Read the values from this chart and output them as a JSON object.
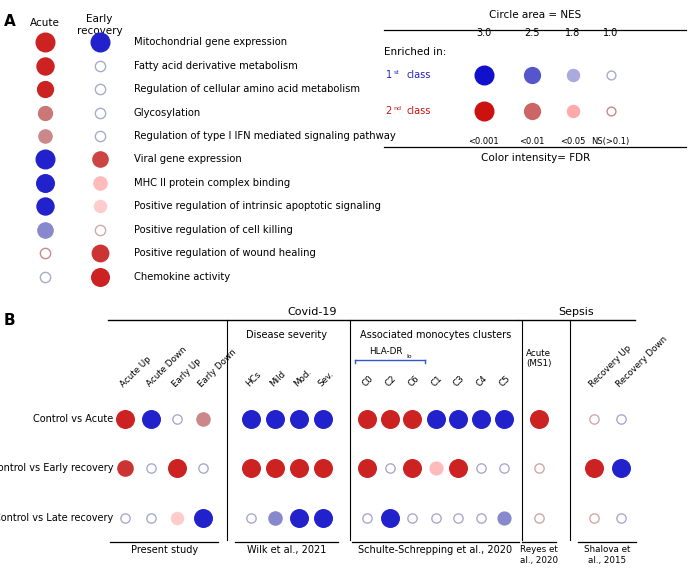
{
  "panel_A_rows": [
    {
      "label": "Mitochondrial gene expression",
      "acute_color": "#CC2222",
      "acute_size": 180,
      "early_color": "#2222CC",
      "early_size": 180
    },
    {
      "label": "Fatty acid derivative metabolism",
      "acute_color": "#CC2222",
      "acute_size": 150,
      "early_color": "#FFFFFF",
      "early_size": 55,
      "early_edge": "#AAAACC"
    },
    {
      "label": "Regulation of cellular amino acid metabolism",
      "acute_color": "#CC2222",
      "acute_size": 130,
      "early_color": "#FFFFFF",
      "early_size": 55,
      "early_edge": "#AAAACC"
    },
    {
      "label": "Glycosylation",
      "acute_color": "#CC7777",
      "acute_size": 100,
      "early_color": "#FFFFFF",
      "early_size": 55,
      "early_edge": "#AAAACC"
    },
    {
      "label": "Regulation of type I IFN mediated signaling pathway",
      "acute_color": "#CC8888",
      "acute_size": 90,
      "early_color": "#FFFFFF",
      "early_size": 55,
      "early_edge": "#AAAACC"
    },
    {
      "label": "Viral gene expression",
      "acute_color": "#2222CC",
      "acute_size": 180,
      "early_color": "#CC4444",
      "early_size": 120
    },
    {
      "label": "MHC II protein complex binding",
      "acute_color": "#2222CC",
      "acute_size": 160,
      "early_color": "#FFBBBB",
      "early_size": 90
    },
    {
      "label": "Positive regulation of intrinsic apoptotic signaling",
      "acute_color": "#2222CC",
      "acute_size": 150,
      "early_color": "#FFCCCC",
      "early_size": 75
    },
    {
      "label": "Positive regulation of cell killing",
      "acute_color": "#8888CC",
      "acute_size": 120,
      "early_color": "#FFFFFF",
      "early_size": 55,
      "early_edge": "#CCAAAA"
    },
    {
      "label": "Positive regulation of wound healing",
      "acute_color": "#FFFFFF",
      "acute_size": 55,
      "acute_edge": "#CC8888",
      "early_color": "#CC3333",
      "early_size": 140
    },
    {
      "label": "Chemokine activity",
      "acute_color": "#FFFFFF",
      "acute_size": 55,
      "acute_edge": "#AAAACC",
      "early_color": "#CC2222",
      "early_size": 160
    }
  ],
  "legend_nes_vals": [
    "3.0",
    "2.5",
    "1.8",
    "1.0"
  ],
  "legend_nes_sizes": [
    180,
    130,
    75,
    40
  ],
  "legend_fdr_labels": [
    "<0.001",
    "<0.01",
    "<0.05",
    "NS(>0.1)"
  ],
  "legend_blue_colors": [
    "#1111CC",
    "#5555CC",
    "#AAAADD",
    "#FFFFFF"
  ],
  "legend_blue_edges": [
    "#1111CC",
    "#5555CC",
    "#AAAADD",
    "#AAAACC"
  ],
  "legend_red_colors": [
    "#CC1111",
    "#CC6666",
    "#FFAAAA",
    "#FFFFFF"
  ],
  "legend_red_edges": [
    "#CC1111",
    "#CC6666",
    "#FFAAAA",
    "#CC8888"
  ],
  "panel_B_rows": [
    "Control vs Acute",
    "Control vs Early recovery",
    "Control vs Late recovery"
  ],
  "panel_B_cols_present": [
    "Acute Up",
    "Acute Down",
    "Early Up",
    "Early Down"
  ],
  "panel_B_cols_wilk": [
    "HCs",
    "Mild",
    "Mod.",
    "Sev."
  ],
  "panel_B_cols_schulte_hladr": [
    "C0",
    "C2",
    "C6"
  ],
  "panel_B_cols_schulte_rest": [
    "C1",
    "C3",
    "C4",
    "C5"
  ],
  "panel_B_cols_shalova": [
    "Recovery Up",
    "Recovery Down"
  ],
  "B_present_data": [
    [
      [
        "#CC2222",
        160
      ],
      [
        "#2222CC",
        160
      ],
      [
        "#FFFFFF",
        45
      ],
      [
        "#CC8888",
        90
      ]
    ],
    [
      [
        "#CC3333",
        120
      ],
      [
        "#FFFFFF",
        45
      ],
      [
        "#CC2222",
        160
      ],
      [
        "#FFFFFF",
        45
      ]
    ],
    [
      [
        "#FFFFFF",
        45
      ],
      [
        "#FFFFFF",
        45
      ],
      [
        "#FFCCCC",
        75
      ],
      [
        "#2222CC",
        160
      ]
    ]
  ],
  "B_present_edges": [
    [
      null,
      null,
      "#AAAACC",
      null
    ],
    [
      null,
      "#AAAACC",
      null,
      "#AAAACC"
    ],
    [
      "#AAAACC",
      "#AAAACC",
      null,
      null
    ]
  ],
  "B_wilk_data": [
    [
      [
        "#2222CC",
        160
      ],
      [
        "#2222CC",
        160
      ],
      [
        "#2222CC",
        160
      ],
      [
        "#2222CC",
        160
      ]
    ],
    [
      [
        "#CC2222",
        160
      ],
      [
        "#CC2222",
        160
      ],
      [
        "#CC2222",
        160
      ],
      [
        "#CC2222",
        160
      ]
    ],
    [
      [
        "#FFFFFF",
        45
      ],
      [
        "#8888CC",
        90
      ],
      [
        "#2222CC",
        160
      ],
      [
        "#2222CC",
        160
      ]
    ]
  ],
  "B_wilk_edges": [
    [
      null,
      null,
      null,
      null
    ],
    [
      null,
      null,
      null,
      null
    ],
    [
      "#AAAACC",
      null,
      null,
      null
    ]
  ],
  "B_schulte_hladr_data": [
    [
      [
        "#CC2222",
        160
      ],
      [
        "#CC2222",
        160
      ],
      [
        "#CC2222",
        160
      ]
    ],
    [
      [
        "#CC2222",
        160
      ],
      [
        "#FFFFFF",
        45
      ],
      [
        "#CC2222",
        160
      ]
    ],
    [
      [
        "#FFFFFF",
        45
      ],
      [
        "#2222CC",
        160
      ],
      [
        "#FFFFFF",
        45
      ]
    ]
  ],
  "B_schulte_hladr_edges": [
    [
      null,
      null,
      null
    ],
    [
      null,
      "#AAAACC",
      null
    ],
    [
      "#AAAACC",
      null,
      "#AAAACC"
    ]
  ],
  "B_schulte_rest_data": [
    [
      [
        "#2222CC",
        160
      ],
      [
        "#2222CC",
        160
      ],
      [
        "#2222CC",
        160
      ],
      [
        "#2222CC",
        160
      ]
    ],
    [
      [
        "#FFBBBB",
        85
      ],
      [
        "#CC2222",
        160
      ],
      [
        "#FFFFFF",
        45
      ],
      [
        "#FFFFFF",
        45
      ]
    ],
    [
      [
        "#FFFFFF",
        45
      ],
      [
        "#FFFFFF",
        45
      ],
      [
        "#FFFFFF",
        45
      ],
      [
        "#8888CC",
        85
      ]
    ]
  ],
  "B_schulte_rest_edges": [
    [
      null,
      null,
      null,
      null
    ],
    [
      null,
      null,
      "#AAAACC",
      "#AAAACC"
    ],
    [
      "#AAAACC",
      "#AAAACC",
      "#AAAACC",
      null
    ]
  ],
  "B_reyes_data": [
    [
      [
        "#CC2222",
        160
      ]
    ],
    [
      [
        "#FFFFFF",
        45
      ]
    ],
    [
      [
        "#FFFFFF",
        45
      ]
    ]
  ],
  "B_reyes_edges": [
    [
      null
    ],
    [
      "#CCAAAA"
    ],
    [
      "#CCAAAA"
    ]
  ],
  "B_shalova_data": [
    [
      [
        "#FFFFFF",
        45
      ],
      [
        "#FFFFFF",
        45
      ]
    ],
    [
      [
        "#CC2222",
        160
      ],
      [
        "#2222CC",
        160
      ]
    ],
    [
      [
        "#FFFFFF",
        45
      ],
      [
        "#FFFFFF",
        45
      ]
    ]
  ],
  "B_shalova_edges": [
    [
      "#CCAAAA",
      "#AAAACC"
    ],
    [
      null,
      null
    ],
    [
      "#CCAAAA",
      "#AAAACC"
    ]
  ]
}
